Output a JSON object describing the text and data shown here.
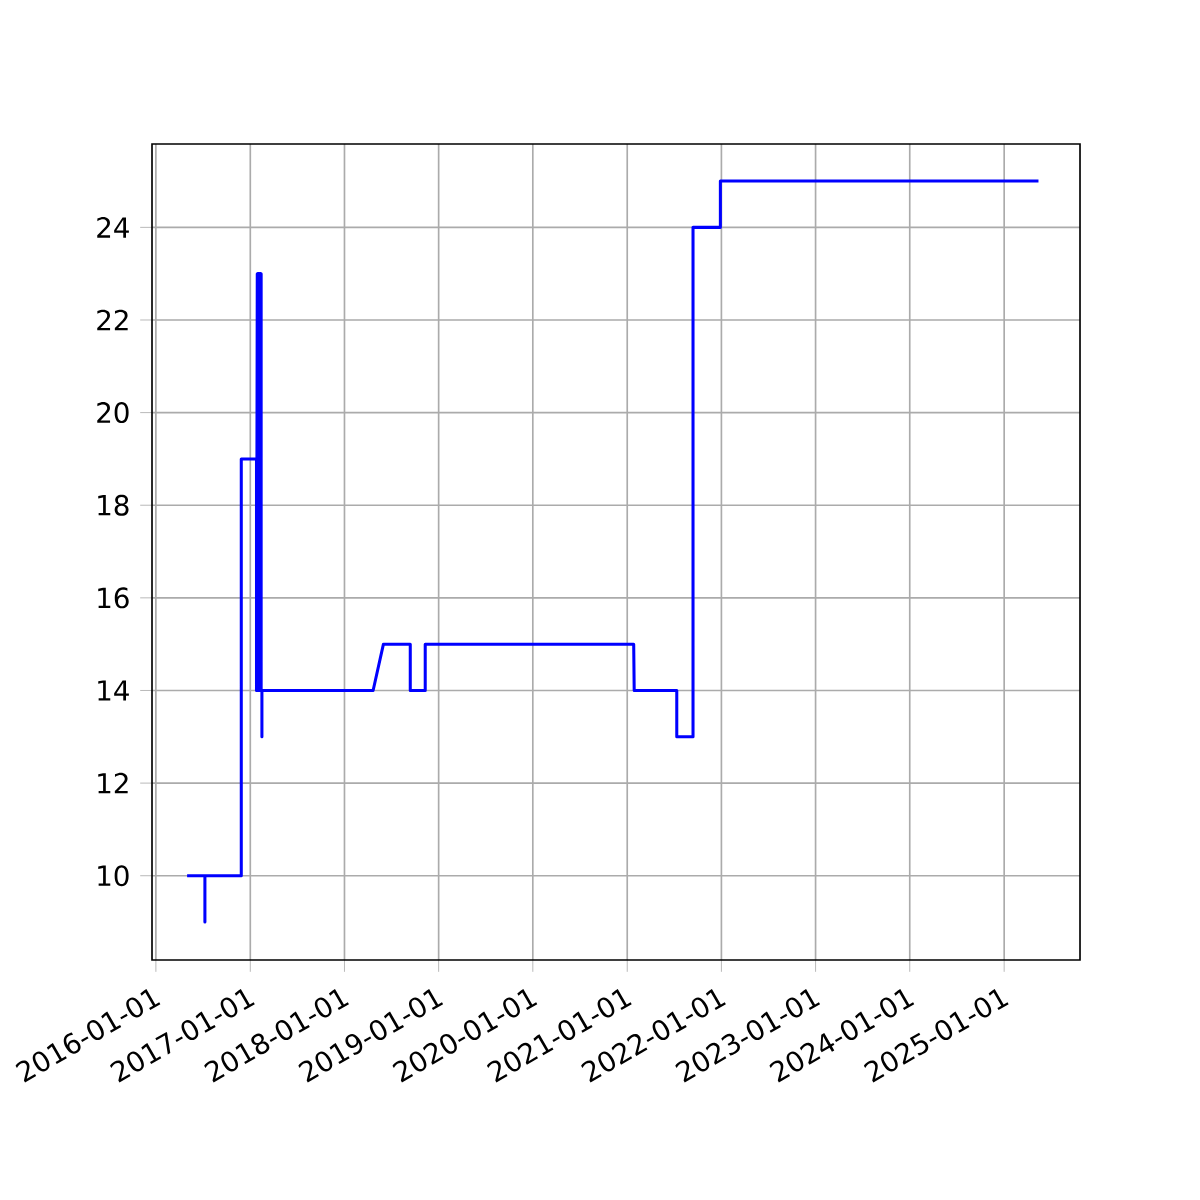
{
  "chart_data": {
    "type": "line",
    "x": [
      "2016-05-01",
      "2016-07-09",
      "2016-07-09",
      "2016-07-09",
      "2016-11-27",
      "2016-11-27",
      "2017-01-25",
      "2017-01-25",
      "2017-01-28",
      "2017-01-28",
      "2017-01-31",
      "2017-01-31",
      "2017-02-03",
      "2017-02-03",
      "2017-02-06",
      "2017-02-06",
      "2017-02-09",
      "2017-02-09",
      "2017-02-12",
      "2017-02-12",
      "2017-02-15",
      "2017-02-15",
      "2017-02-15",
      "2018-04-22",
      "2018-06-01",
      "2018-09-13",
      "2018-09-13",
      "2018-11-10",
      "2018-11-10",
      "2021-01-26",
      "2021-01-28",
      "2021-07-12",
      "2021-07-12",
      "2021-09-13",
      "2021-09-13",
      "2021-12-28",
      "2021-12-28",
      "2025-05-14"
    ],
    "series": [
      {
        "color": "#0000ff",
        "values": [
          10,
          10,
          9,
          10,
          10,
          19,
          19,
          14,
          23,
          14,
          23,
          14,
          23,
          14,
          23,
          14,
          23,
          14,
          23,
          14,
          14,
          13,
          14,
          14,
          15,
          15,
          14,
          14,
          15,
          15,
          14,
          14,
          13,
          13,
          24,
          24,
          25,
          25
        ]
      }
    ],
    "xlim": [
      "2015-12-17",
      "2025-10-22"
    ],
    "xticks": [
      "2016-01-01",
      "2017-01-01",
      "2018-01-01",
      "2019-01-01",
      "2020-01-01",
      "2021-01-01",
      "2022-01-01",
      "2023-01-01",
      "2024-01-01",
      "2025-01-01"
    ],
    "ylim": [
      8.18,
      25.8
    ],
    "yticks": [
      10,
      12,
      14,
      16,
      18,
      20,
      22,
      24
    ],
    "grid": true,
    "line_style": "solid"
  }
}
